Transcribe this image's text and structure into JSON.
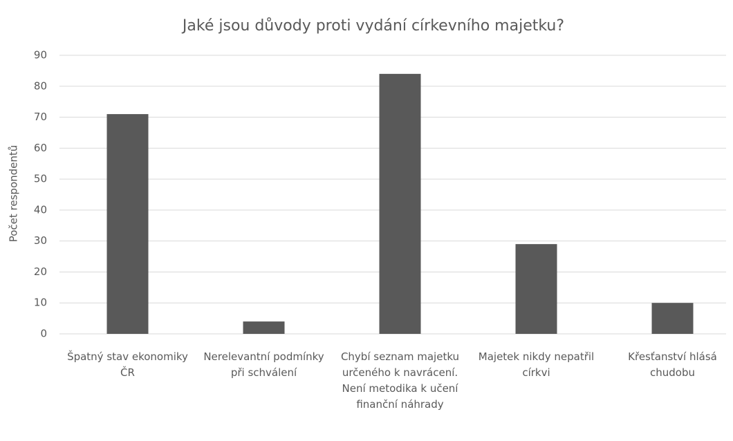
{
  "chart_data": {
    "type": "bar",
    "title": "Jaké jsou důvody proti vydání církevního majetku?",
    "y_label": "Počet respondentů",
    "categories": [
      "Špatný stav ekonomiky ČR",
      "Nerelevantní podmínky při schválení",
      "Chybí seznam majetku určeného k navrácení. Není metodika k učení finanční náhrady",
      "Majetek nikdy nepatřil církvi",
      "Křesťanství hlásá chudobu"
    ],
    "values": [
      71,
      4,
      84,
      29,
      10
    ],
    "color": "#595959",
    "ylim": [
      0,
      90
    ],
    "yticks": [
      0,
      10,
      20,
      30,
      40,
      50,
      60,
      70,
      80,
      90
    ],
    "grid": true
  }
}
